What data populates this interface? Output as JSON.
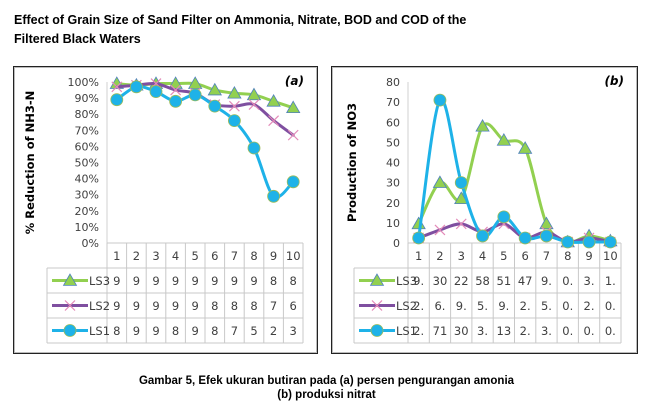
{
  "figure": {
    "title_line1": "Effect of Grain Size of Sand Filter on Ammonia, Nitrate, BOD and COD of the",
    "title_line2": "Filtered Black Waters",
    "caption_line1": "Gambar 5, Efek ukuran butiran pada (a) persen pengurangan amonia",
    "caption_line2": "(b) produksi nitrat"
  },
  "series_colors": {
    "LS3": "#92D050",
    "LS2": "#7F4FA0",
    "LS1": "#1EB2E8"
  },
  "chart_data": [
    {
      "type": "line",
      "panel_label": "(a)",
      "title": "",
      "xlabel": "",
      "ylabel": "% Reduction of NH3-N",
      "categories": [
        "1",
        "2",
        "3",
        "4",
        "5",
        "6",
        "7",
        "8",
        "9",
        "10"
      ],
      "ylim": [
        0,
        100
      ],
      "yticks": [
        "0%",
        "10%",
        "20%",
        "30%",
        "40%",
        "50%",
        "60%",
        "70%",
        "80%",
        "90%",
        "100%"
      ],
      "grid": false,
      "legend": "data-table",
      "series": [
        {
          "name": "LS3",
          "marker": "triangle",
          "values": [
            99,
            98,
            99,
            99,
            99,
            95,
            93,
            92,
            88,
            84
          ],
          "table_values": [
            "9",
            "9",
            "9",
            "9",
            "9",
            "9",
            "9",
            "9",
            "8",
            "8"
          ]
        },
        {
          "name": "LS2",
          "marker": "x",
          "values": [
            97,
            98,
            99,
            95,
            93,
            86,
            85,
            86,
            76,
            67
          ],
          "table_values": [
            "9",
            "9",
            "9",
            "9",
            "9",
            "8",
            "8",
            "8",
            "7",
            "6"
          ]
        },
        {
          "name": "LS1",
          "marker": "circle",
          "values": [
            89,
            97,
            94,
            88,
            92,
            85,
            76,
            59,
            29,
            38
          ],
          "table_values": [
            "8",
            "9",
            "9",
            "8",
            "9",
            "8",
            "7",
            "5",
            "2",
            "3"
          ]
        }
      ]
    },
    {
      "type": "line",
      "panel_label": "(b)",
      "title": "",
      "xlabel": "",
      "ylabel": "Production of NO3",
      "categories": [
        "1",
        "2",
        "3",
        "4",
        "5",
        "6",
        "7",
        "8",
        "9",
        "10"
      ],
      "ylim": [
        0,
        80
      ],
      "yticks": [
        "0",
        "10",
        "20",
        "30",
        "40",
        "50",
        "60",
        "70",
        "80"
      ],
      "grid": false,
      "legend": "data-table",
      "series": [
        {
          "name": "LS3",
          "marker": "triangle",
          "values": [
            9.5,
            30,
            22,
            58,
            51,
            47,
            9.5,
            0.5,
            3.5,
            1
          ],
          "table_values": [
            "9.",
            "30",
            "22",
            "58",
            "51",
            "47",
            "9.",
            "0.",
            "3.",
            "1."
          ]
        },
        {
          "name": "LS2",
          "marker": "x",
          "values": [
            2.5,
            6.5,
            9.5,
            5.5,
            9.5,
            2.5,
            5.5,
            0.5,
            2.5,
            0.5
          ],
          "table_values": [
            "2.",
            "6.",
            "9.",
            "5.",
            "9.",
            "2.",
            "5.",
            "0.",
            "2.",
            "0."
          ]
        },
        {
          "name": "LS1",
          "marker": "circle",
          "values": [
            2.5,
            71,
            30,
            3.5,
            13,
            2.5,
            3.5,
            0.5,
            0.5,
            0.5
          ],
          "table_values": [
            "2.",
            "71",
            "30",
            "3.",
            "13",
            "2.",
            "3.",
            "0.",
            "0.",
            "0."
          ]
        }
      ]
    }
  ]
}
